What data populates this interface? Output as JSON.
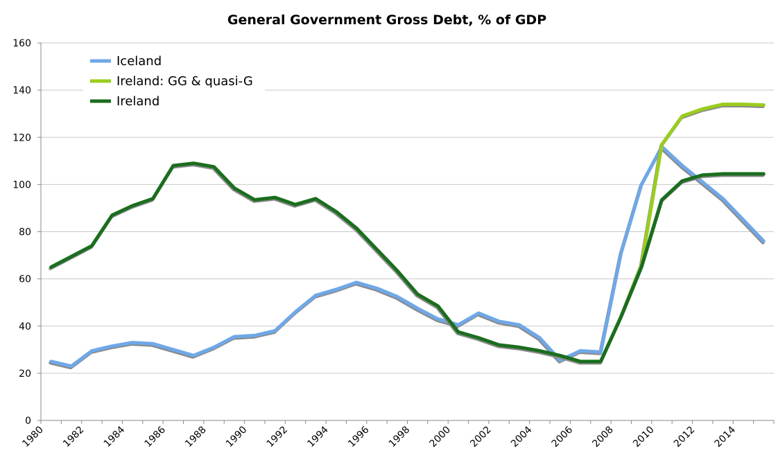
{
  "chart_data": {
    "type": "line",
    "title": "General Government Gross Debt, % of GDP",
    "xlabel": "",
    "ylabel": "",
    "ylim": [
      0,
      160
    ],
    "yticks": [
      0,
      20,
      40,
      60,
      80,
      100,
      120,
      140,
      160
    ],
    "xlim": [
      1980,
      2016
    ],
    "xtick_labels": [
      "1980",
      "1982",
      "1984",
      "1986",
      "1988",
      "1990",
      "1992",
      "1994",
      "1996",
      "1998",
      "2000",
      "2002",
      "2004",
      "2006",
      "2008",
      "2010",
      "2012",
      "2014"
    ],
    "grid": true,
    "legend_position": "top-left",
    "series": [
      {
        "name": "Iceland",
        "color": "#6fa8e8",
        "x": [
          1980,
          1981,
          1982,
          1983,
          1984,
          1985,
          1986,
          1987,
          1988,
          1989,
          1990,
          1991,
          1992,
          1993,
          1994,
          1995,
          1996,
          1997,
          1998,
          1999,
          2000,
          2001,
          2002,
          2003,
          2004,
          2005,
          2006,
          2007,
          2008,
          2009,
          2010,
          2011,
          2012,
          2013,
          2014,
          2015
        ],
        "values": [
          25,
          23,
          29.5,
          31.5,
          33,
          32.5,
          30,
          27.5,
          31,
          35.5,
          36,
          38,
          46,
          53,
          55.5,
          58.5,
          56,
          52.5,
          47.5,
          43,
          40.5,
          45.5,
          42,
          40.5,
          35,
          25.5,
          29.5,
          29,
          71,
          100,
          116,
          108,
          101,
          94,
          85,
          76
        ]
      },
      {
        "name": "Ireland: GG & quasi-G",
        "color": "#9acd1e",
        "x": [
          2007,
          2008,
          2009,
          2010,
          2011,
          2012,
          2013,
          2014,
          2015
        ],
        "values": [
          25,
          44,
          66,
          117,
          129,
          132,
          134,
          134,
          133.7
        ]
      },
      {
        "name": "Ireland",
        "color": "#1a6e1e",
        "x": [
          1980,
          1981,
          1982,
          1983,
          1984,
          1985,
          1986,
          1987,
          1988,
          1989,
          1990,
          1991,
          1992,
          1993,
          1994,
          1995,
          1996,
          1997,
          1998,
          1999,
          2000,
          2001,
          2002,
          2003,
          2004,
          2005,
          2006,
          2007,
          2008,
          2009,
          2010,
          2011,
          2012,
          2013,
          2014,
          2015
        ],
        "values": [
          65,
          69.5,
          74,
          87,
          91,
          94,
          108,
          109,
          107.5,
          98.5,
          93.5,
          94.5,
          91.5,
          94,
          88.5,
          81.5,
          72.5,
          63.5,
          53.5,
          48.5,
          37.5,
          35,
          32,
          31,
          29.5,
          27.5,
          25,
          25,
          44,
          65,
          93.5,
          101.5,
          104,
          104.5,
          104.5,
          104.5
        ]
      }
    ]
  }
}
